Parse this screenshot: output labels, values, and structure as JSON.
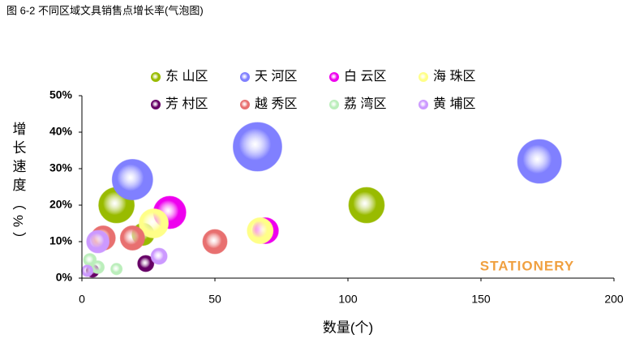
{
  "chart_data": {
    "type": "bubble",
    "title": "图 6-2 不同区域文具销售点增长率(气泡图)",
    "x_label": "数量(个)",
    "y_label": "增长速度（%）",
    "watermark": "STATIONERY",
    "xlim": [
      0,
      200
    ],
    "xticks": [
      0,
      50,
      100,
      150,
      200
    ],
    "ylim": [
      0,
      50
    ],
    "yticks": [
      {
        "value": 0,
        "label": "0%"
      },
      {
        "value": 10,
        "label": "10%"
      },
      {
        "value": 20,
        "label": "20%"
      },
      {
        "value": 30,
        "label": "30%"
      },
      {
        "value": 40,
        "label": "40%"
      },
      {
        "value": 50,
        "label": "50%"
      }
    ],
    "legend": "top",
    "series": [
      {
        "name": "东 山区",
        "color": "#99bb00",
        "x": [
          13,
          107,
          23
        ],
        "y": [
          20,
          20,
          12
        ],
        "sizes": [
          77,
          77,
          30
        ]
      },
      {
        "name": "天 河区",
        "color": "#8080ff",
        "x": [
          19,
          66,
          172
        ],
        "y": [
          27,
          36,
          32
        ],
        "sizes": [
          100,
          144,
          117
        ]
      },
      {
        "name": "白 云区",
        "color": "#ee00ee",
        "x": [
          33,
          69
        ],
        "y": [
          18,
          13
        ],
        "sizes": [
          64,
          41
        ]
      },
      {
        "name": "海 珠区",
        "color": "#ffff88",
        "x": [
          27,
          67
        ],
        "y": [
          15,
          13
        ],
        "sizes": [
          52,
          41
        ]
      },
      {
        "name": "芳 村区",
        "color": "#660066",
        "x": [
          24,
          4
        ],
        "y": [
          4,
          2
        ],
        "sizes": [
          16,
          10
        ]
      },
      {
        "name": "越 秀区",
        "color": "#e87070",
        "x": [
          8,
          19,
          50
        ],
        "y": [
          11,
          11,
          10
        ],
        "sizes": [
          36,
          36,
          36
        ]
      },
      {
        "name": "荔 湾区",
        "color": "#bbeebb",
        "x": [
          3,
          6,
          13
        ],
        "y": [
          5,
          3,
          2.5
        ],
        "sizes": [
          10,
          10,
          8
        ]
      },
      {
        "name": "黄 埔区",
        "color": "#cc99ff",
        "x": [
          6,
          29,
          2
        ],
        "y": [
          10,
          6,
          2
        ],
        "sizes": [
          31,
          16,
          8
        ]
      }
    ]
  }
}
